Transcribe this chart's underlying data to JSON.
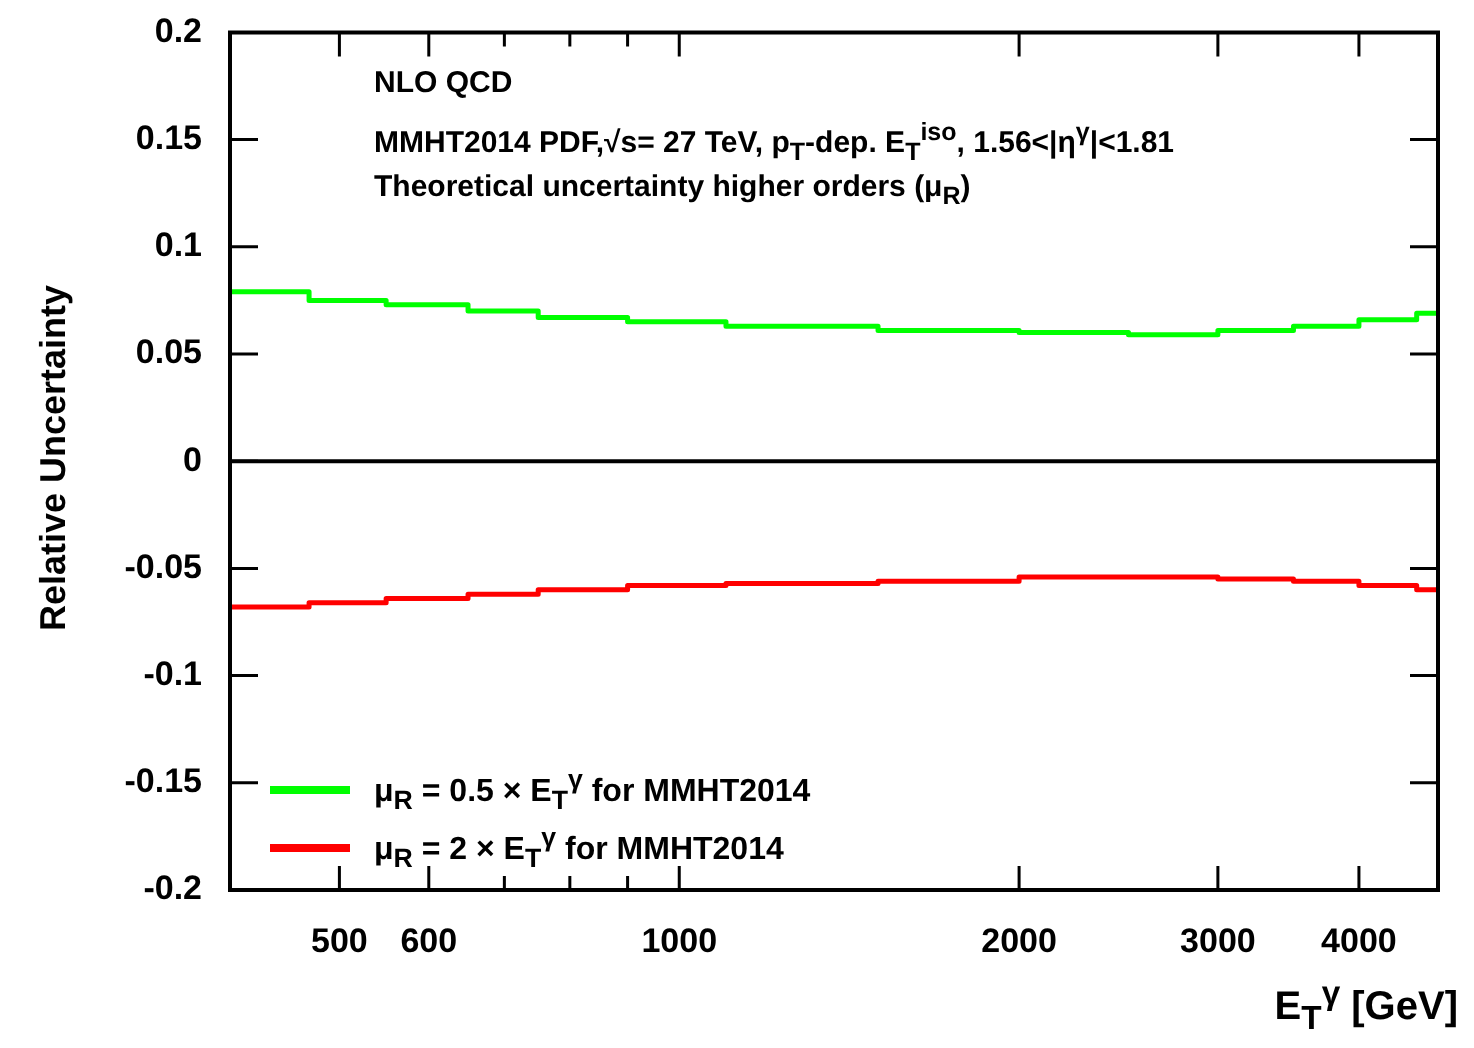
{
  "chart_data": {
    "type": "histogram",
    "ylabel": "Relative Uncertainty",
    "xlabel": "E$_{T}$$^{γ}$ [GeV]",
    "annotations": [
      "NLO QCD",
      "MMHT2014 PDF,√s= 27 TeV, p$_{T}$-dep. E$_{T}$$^{iso}$, 1.56<|η$^{γ}$|<1.81",
      "Theoretical uncertainty higher orders (μ$_{R}$)"
    ],
    "bins": [
      400,
      470,
      550,
      650,
      750,
      900,
      1100,
      1500,
      2000,
      2500,
      3000,
      3500,
      4000,
      4500,
      4700
    ],
    "series": [
      {
        "name": "μ$_{R}$ = 0.5 × E$_{T}$$^{γ}$ for MMHT2014",
        "color": "#00ff00",
        "values": [
          0.079,
          0.075,
          0.073,
          0.07,
          0.067,
          0.065,
          0.063,
          0.061,
          0.06,
          0.059,
          0.061,
          0.063,
          0.066,
          0.069
        ]
      },
      {
        "name": "μ$_{R}$ = 2 × E$_{T}$$^{γ}$ for MMHT2014",
        "color": "#ff0000",
        "values": [
          -0.068,
          -0.066,
          -0.064,
          -0.062,
          -0.06,
          -0.058,
          -0.057,
          -0.056,
          -0.054,
          -0.054,
          -0.055,
          -0.056,
          -0.058,
          -0.06
        ]
      }
    ],
    "log": "x",
    "xlim": [
      400,
      4700
    ],
    "xticks": [
      500,
      600,
      {
        "value": 700,
        "label": null
      },
      {
        "value": 800,
        "label": null
      },
      {
        "value": 900,
        "label": null
      },
      1000,
      2000,
      3000,
      4000
    ],
    "ylim": [
      -0.2,
      0.2
    ],
    "yticks": [
      -0.2,
      -0.15,
      -0.1,
      -0.05,
      0,
      0.05,
      0.1,
      0.15,
      0.2
    ],
    "ref_lines": [
      {
        "axis": "y",
        "value": 0,
        "color": "#000000"
      }
    ],
    "legend": "bottom left"
  }
}
